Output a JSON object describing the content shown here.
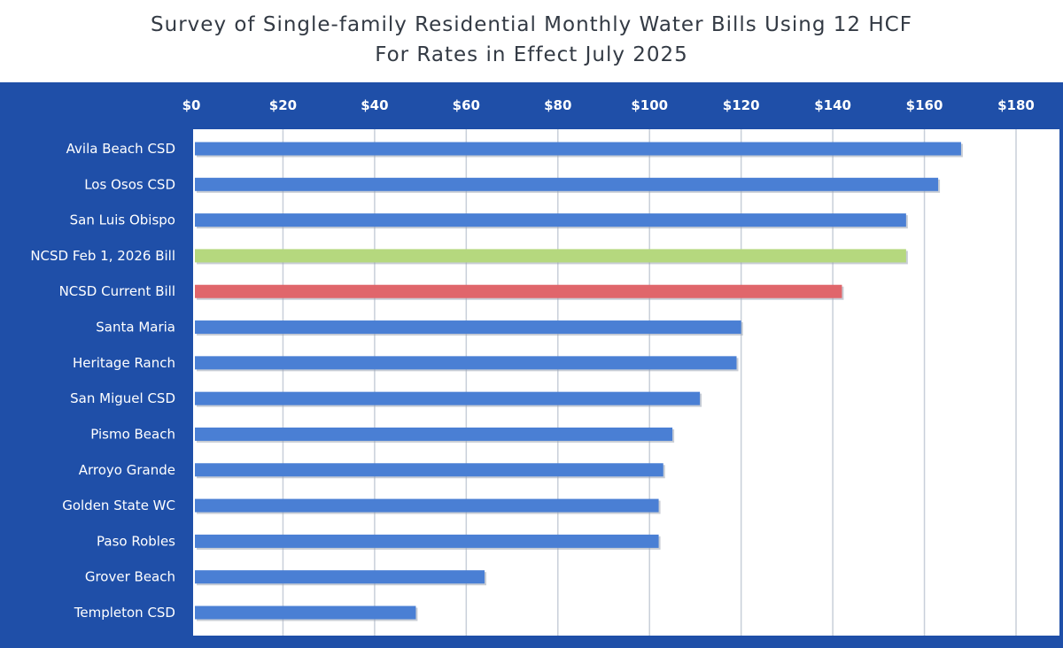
{
  "chart_data": {
    "type": "bar",
    "orientation": "horizontal",
    "title": "Survey of Single-family Residential Monthly Water Bills Using 12 HCF",
    "subtitle": "For Rates in Effect July 2025",
    "xlim": [
      0,
      180
    ],
    "x_ticks": [
      "$0",
      "$20",
      "$40",
      "$60",
      "$80",
      "$100",
      "$120",
      "$140",
      "$160",
      "$180"
    ],
    "x_tick_values": [
      0,
      20,
      40,
      60,
      80,
      100,
      120,
      140,
      160,
      180
    ],
    "x_axis_position": "top",
    "grid": true,
    "categories": [
      "Avila Beach CSD",
      "Los Osos CSD",
      "San Luis Obispo",
      "NCSD Feb 1, 2026 Bill",
      "NCSD Current Bill",
      "Santa Maria",
      "Heritage Ranch",
      "San Miguel CSD",
      "Pismo Beach",
      "Arroyo Grande",
      "Golden State WC",
      "Paso Robles",
      "Grover Beach",
      "Templeton CSD"
    ],
    "values": [
      168,
      163,
      156,
      156,
      142,
      120,
      119,
      111,
      105,
      103,
      102,
      102,
      64,
      49
    ],
    "bar_colors": [
      "#4a7fd4",
      "#4a7fd4",
      "#4a7fd4",
      "#b5d87e",
      "#e0666b",
      "#4a7fd4",
      "#4a7fd4",
      "#4a7fd4",
      "#4a7fd4",
      "#4a7fd4",
      "#4a7fd4",
      "#4a7fd4",
      "#4a7fd4",
      "#4a7fd4"
    ],
    "frame_color": "#1f4fa8",
    "plot_background": "#ffffff",
    "gridline_color": "#c8cfd9"
  }
}
